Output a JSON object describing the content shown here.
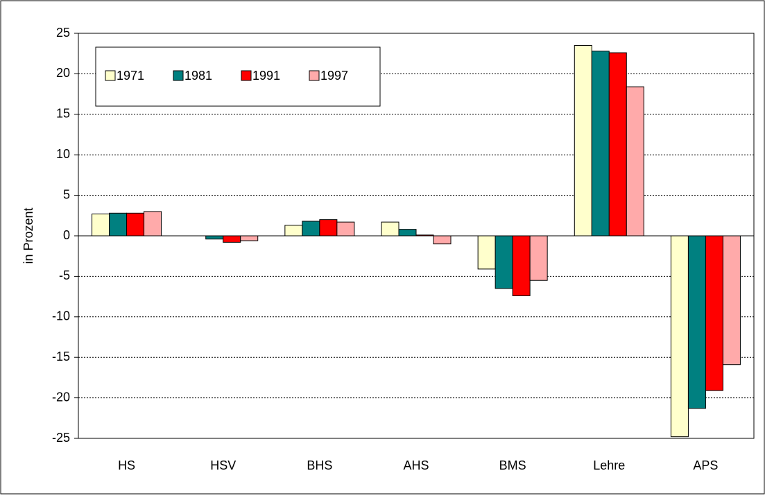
{
  "chart_data": {
    "type": "bar",
    "y_label": "in Prozent",
    "categories": [
      "HS",
      "HSV",
      "BHS",
      "AHS",
      "BMS",
      "Lehre",
      "APS"
    ],
    "series": [
      {
        "name": "1971",
        "color": "#ffffcc",
        "values": [
          2.7,
          0,
          1.3,
          1.7,
          -4.1,
          23.5,
          -24.8
        ]
      },
      {
        "name": "1981",
        "color": "#008080",
        "values": [
          2.8,
          -0.4,
          1.8,
          0.8,
          -6.5,
          22.8,
          -21.3
        ]
      },
      {
        "name": "1991",
        "color": "#ff0000",
        "values": [
          2.8,
          -0.8,
          2.0,
          0.1,
          -7.4,
          22.6,
          -19.1
        ]
      },
      {
        "name": "1997",
        "color": "#ffaaaa",
        "values": [
          3.0,
          -0.6,
          1.7,
          -1.0,
          -5.5,
          18.4,
          -15.9
        ]
      }
    ],
    "ylim": [
      -25,
      25
    ],
    "yticks": [
      -25,
      -20,
      -15,
      -10,
      -5,
      0,
      5,
      10,
      15,
      20,
      25
    ],
    "grid": true,
    "legend": "top-left"
  }
}
